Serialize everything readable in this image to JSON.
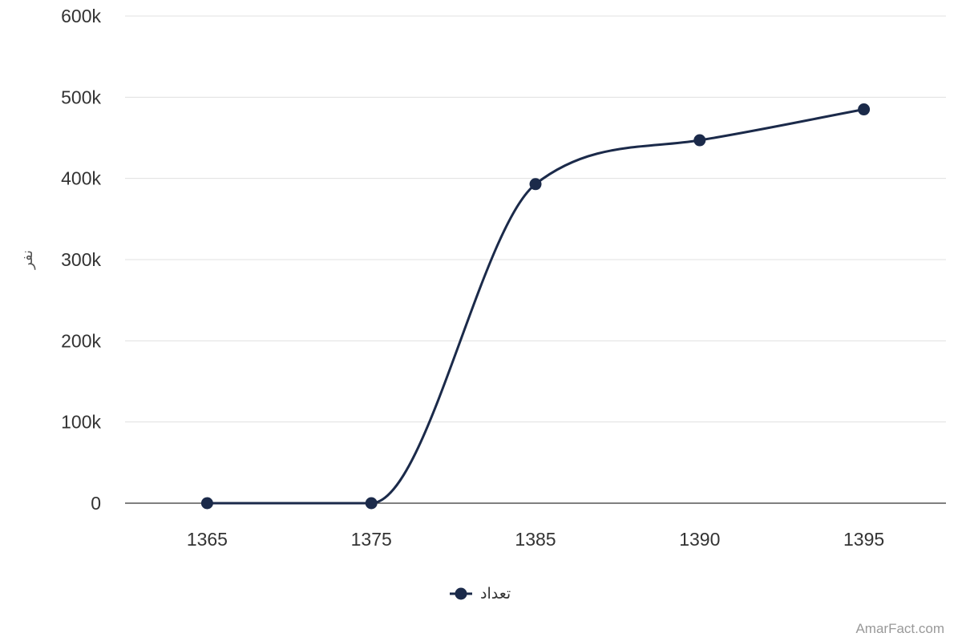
{
  "chart_data": {
    "type": "line",
    "smooth": true,
    "x": [
      "1365",
      "1375",
      "1385",
      "1390",
      "1395"
    ],
    "series": [
      {
        "name": "تعداد",
        "values": [
          0,
          0,
          393000,
          447000,
          485000
        ],
        "color": "#1b2a4a"
      }
    ],
    "ylabel": "نفر",
    "xlabel": "",
    "ylim": [
      0,
      600000
    ],
    "yticks": [
      0,
      100000,
      200000,
      300000,
      400000,
      500000,
      600000
    ],
    "ytick_labels": [
      "0",
      "100k",
      "200k",
      "300k",
      "400k",
      "500k",
      "600k"
    ],
    "grid": true,
    "legend_position": "bottom-center"
  },
  "watermark": "AmarFact.com"
}
